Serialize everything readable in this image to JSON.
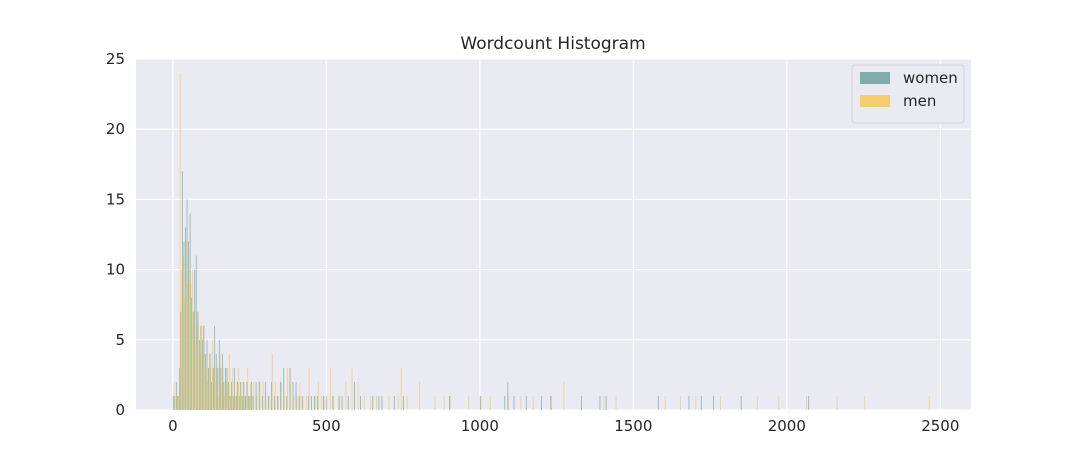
{
  "chart_data": {
    "type": "bar",
    "title": "Wordcount Histogram",
    "xlabel": "",
    "ylabel": "",
    "xlim": [
      -120,
      2600
    ],
    "ylim": [
      0,
      25
    ],
    "xticks": [
      0,
      500,
      1000,
      1500,
      2000,
      2500
    ],
    "yticks": [
      0,
      5,
      10,
      15,
      20,
      25
    ],
    "grid": true,
    "legend_position": "top-right",
    "bin_width": 5,
    "series": [
      {
        "name": "women",
        "color": "#7fadab",
        "points": [
          [
            0,
            1
          ],
          [
            5,
            1
          ],
          [
            10,
            2
          ],
          [
            15,
            1
          ],
          [
            20,
            3
          ],
          [
            25,
            7
          ],
          [
            30,
            17
          ],
          [
            35,
            12
          ],
          [
            40,
            13
          ],
          [
            45,
            15
          ],
          [
            50,
            12
          ],
          [
            55,
            14
          ],
          [
            60,
            8
          ],
          [
            65,
            7
          ],
          [
            70,
            10
          ],
          [
            75,
            11
          ],
          [
            80,
            7
          ],
          [
            85,
            5
          ],
          [
            90,
            6
          ],
          [
            95,
            5
          ],
          [
            100,
            6
          ],
          [
            105,
            4
          ],
          [
            110,
            5
          ],
          [
            115,
            3
          ],
          [
            120,
            4
          ],
          [
            125,
            2
          ],
          [
            130,
            3
          ],
          [
            135,
            6
          ],
          [
            140,
            4
          ],
          [
            145,
            3
          ],
          [
            150,
            5
          ],
          [
            155,
            3
          ],
          [
            160,
            4
          ],
          [
            165,
            2
          ],
          [
            170,
            3
          ],
          [
            175,
            3
          ],
          [
            180,
            2
          ],
          [
            185,
            1
          ],
          [
            190,
            2
          ],
          [
            195,
            1
          ],
          [
            200,
            3
          ],
          [
            205,
            1
          ],
          [
            210,
            2
          ],
          [
            215,
            1
          ],
          [
            220,
            2
          ],
          [
            225,
            1
          ],
          [
            230,
            2
          ],
          [
            235,
            1
          ],
          [
            240,
            2
          ],
          [
            245,
            1
          ],
          [
            250,
            1
          ],
          [
            255,
            2
          ],
          [
            260,
            1
          ],
          [
            270,
            2
          ],
          [
            280,
            2
          ],
          [
            290,
            1
          ],
          [
            300,
            2
          ],
          [
            310,
            1
          ],
          [
            320,
            2
          ],
          [
            330,
            1
          ],
          [
            340,
            1
          ],
          [
            350,
            2
          ],
          [
            360,
            3
          ],
          [
            370,
            1
          ],
          [
            380,
            3
          ],
          [
            390,
            2
          ],
          [
            400,
            2
          ],
          [
            410,
            1
          ],
          [
            420,
            1
          ],
          [
            440,
            1
          ],
          [
            450,
            1
          ],
          [
            460,
            1
          ],
          [
            470,
            1
          ],
          [
            490,
            1
          ],
          [
            500,
            1
          ],
          [
            520,
            1
          ],
          [
            540,
            1
          ],
          [
            550,
            1
          ],
          [
            570,
            1
          ],
          [
            590,
            2
          ],
          [
            610,
            1
          ],
          [
            650,
            1
          ],
          [
            670,
            1
          ],
          [
            680,
            1
          ],
          [
            720,
            1
          ],
          [
            750,
            1
          ],
          [
            900,
            1
          ],
          [
            1000,
            1
          ],
          [
            1080,
            1
          ],
          [
            1090,
            2
          ],
          [
            1110,
            1
          ],
          [
            1150,
            1
          ],
          [
            1200,
            1
          ],
          [
            1230,
            1
          ],
          [
            1330,
            1
          ],
          [
            1390,
            1
          ],
          [
            1410,
            1
          ],
          [
            1580,
            1
          ],
          [
            1680,
            1
          ],
          [
            1720,
            1
          ],
          [
            1760,
            1
          ],
          [
            1850,
            1
          ],
          [
            2070,
            1
          ]
        ]
      },
      {
        "name": "men",
        "color": "#f5cc70",
        "points": [
          [
            0,
            2
          ],
          [
            5,
            0
          ],
          [
            10,
            1
          ],
          [
            15,
            1
          ],
          [
            20,
            24
          ],
          [
            25,
            10
          ],
          [
            30,
            11
          ],
          [
            35,
            8
          ],
          [
            40,
            12
          ],
          [
            45,
            9
          ],
          [
            50,
            10
          ],
          [
            55,
            9
          ],
          [
            60,
            10
          ],
          [
            65,
            7
          ],
          [
            70,
            5
          ],
          [
            75,
            6
          ],
          [
            80,
            7
          ],
          [
            85,
            4
          ],
          [
            90,
            6
          ],
          [
            95,
            6
          ],
          [
            100,
            4
          ],
          [
            105,
            3
          ],
          [
            110,
            2
          ],
          [
            115,
            4
          ],
          [
            120,
            3
          ],
          [
            125,
            5
          ],
          [
            130,
            3
          ],
          [
            135,
            2
          ],
          [
            140,
            3
          ],
          [
            145,
            1
          ],
          [
            150,
            4
          ],
          [
            155,
            2
          ],
          [
            160,
            3
          ],
          [
            165,
            1
          ],
          [
            170,
            2
          ],
          [
            175,
            2
          ],
          [
            180,
            4
          ],
          [
            185,
            1
          ],
          [
            190,
            3
          ],
          [
            195,
            2
          ],
          [
            200,
            1
          ],
          [
            205,
            2
          ],
          [
            210,
            3
          ],
          [
            215,
            2
          ],
          [
            220,
            1
          ],
          [
            225,
            2
          ],
          [
            230,
            1
          ],
          [
            240,
            3
          ],
          [
            245,
            1
          ],
          [
            250,
            2
          ],
          [
            260,
            2
          ],
          [
            270,
            1
          ],
          [
            280,
            2
          ],
          [
            290,
            2
          ],
          [
            300,
            1
          ],
          [
            310,
            1
          ],
          [
            320,
            4
          ],
          [
            330,
            2
          ],
          [
            340,
            1
          ],
          [
            350,
            2
          ],
          [
            360,
            1
          ],
          [
            370,
            3
          ],
          [
            380,
            3
          ],
          [
            390,
            1
          ],
          [
            400,
            1
          ],
          [
            410,
            2
          ],
          [
            420,
            1
          ],
          [
            430,
            1
          ],
          [
            440,
            3
          ],
          [
            460,
            1
          ],
          [
            470,
            2
          ],
          [
            480,
            1
          ],
          [
            490,
            1
          ],
          [
            510,
            3
          ],
          [
            520,
            1
          ],
          [
            540,
            1
          ],
          [
            560,
            2
          ],
          [
            580,
            3
          ],
          [
            600,
            2
          ],
          [
            620,
            1
          ],
          [
            640,
            1
          ],
          [
            660,
            1
          ],
          [
            700,
            1
          ],
          [
            730,
            1
          ],
          [
            740,
            3
          ],
          [
            760,
            1
          ],
          [
            800,
            2
          ],
          [
            850,
            1
          ],
          [
            880,
            1
          ],
          [
            900,
            1
          ],
          [
            960,
            1
          ],
          [
            1000,
            1
          ],
          [
            1030,
            1
          ],
          [
            1090,
            1
          ],
          [
            1130,
            1
          ],
          [
            1170,
            1
          ],
          [
            1230,
            1
          ],
          [
            1270,
            2
          ],
          [
            1400,
            1
          ],
          [
            1440,
            1
          ],
          [
            1600,
            1
          ],
          [
            1650,
            1
          ],
          [
            1700,
            1
          ],
          [
            1780,
            1
          ],
          [
            1900,
            1
          ],
          [
            1970,
            1
          ],
          [
            2060,
            1
          ],
          [
            2160,
            1
          ],
          [
            2250,
            1
          ],
          [
            2460,
            1
          ]
        ]
      }
    ]
  }
}
